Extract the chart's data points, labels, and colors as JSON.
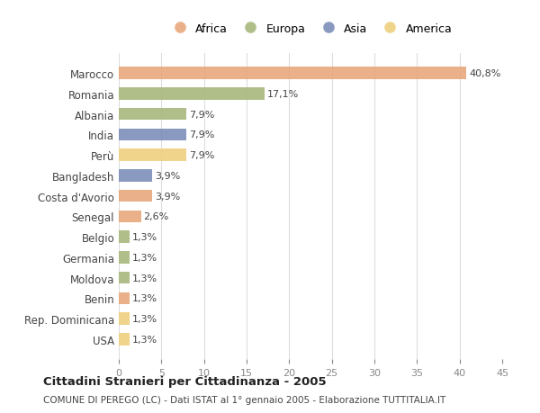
{
  "countries": [
    "Marocco",
    "Romania",
    "Albania",
    "India",
    "Perù",
    "Bangladesh",
    "Costa d'Avorio",
    "Senegal",
    "Belgio",
    "Germania",
    "Moldova",
    "Benin",
    "Rep. Dominicana",
    "USA"
  ],
  "values": [
    40.8,
    17.1,
    7.9,
    7.9,
    7.9,
    3.9,
    3.9,
    2.6,
    1.3,
    1.3,
    1.3,
    1.3,
    1.3,
    1.3
  ],
  "labels": [
    "40,8%",
    "17,1%",
    "7,9%",
    "7,9%",
    "7,9%",
    "3,9%",
    "3,9%",
    "2,6%",
    "1,3%",
    "1,3%",
    "1,3%",
    "1,3%",
    "1,3%",
    "1,3%"
  ],
  "continents": [
    "Africa",
    "Europa",
    "Europa",
    "Asia",
    "America",
    "Asia",
    "Africa",
    "Africa",
    "Europa",
    "Europa",
    "Europa",
    "Africa",
    "America",
    "America"
  ],
  "colors": {
    "Africa": "#E8A87C",
    "Europa": "#A8B87C",
    "Asia": "#7C8EB8",
    "America": "#F0D080"
  },
  "legend_order": [
    "Africa",
    "Europa",
    "Asia",
    "America"
  ],
  "title": "Cittadini Stranieri per Cittadinanza - 2005",
  "subtitle": "COMUNE DI PEREGO (LC) - Dati ISTAT al 1° gennaio 2005 - Elaborazione TUTTITALIA.IT",
  "xlim": [
    0,
    45
  ],
  "xticks": [
    0,
    5,
    10,
    15,
    20,
    25,
    30,
    35,
    40,
    45
  ],
  "bg_color": "#ffffff",
  "grid_color": "#dddddd"
}
